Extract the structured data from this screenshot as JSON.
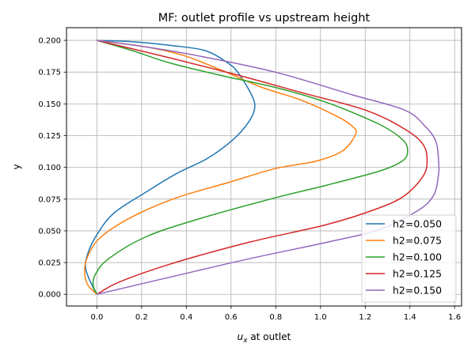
{
  "chart_data": {
    "type": "line",
    "title": "MF: outlet profile vs upstream height",
    "xlabel": "u_x at outlet",
    "xlabel_parts": {
      "base": "u",
      "sub": "x",
      "rest": " at outlet"
    },
    "ylabel": "y",
    "xlim": [
      -0.136,
      1.631
    ],
    "ylim": [
      -0.0092,
      0.21
    ],
    "xticks": [
      0.0,
      0.2,
      0.4,
      0.6,
      0.8,
      1.0,
      1.2,
      1.4,
      1.6
    ],
    "xtick_labels": [
      "0.0",
      "0.2",
      "0.4",
      "0.6",
      "0.8",
      "1.0",
      "1.2",
      "1.4",
      "1.6"
    ],
    "yticks": [
      0.0,
      0.025,
      0.05,
      0.075,
      0.1,
      0.125,
      0.15,
      0.175,
      0.2
    ],
    "ytick_labels": [
      "0.000",
      "0.025",
      "0.050",
      "0.075",
      "0.100",
      "0.125",
      "0.150",
      "0.175",
      "0.200"
    ],
    "grid": true,
    "legend_position": "lower-right",
    "series": [
      {
        "name": "h2=0.050",
        "color": "#1f77b4",
        "points": [
          [
            0,
            0
          ],
          [
            -0.017,
            0.0054
          ],
          [
            -0.05,
            0.02
          ],
          [
            -0.041,
            0.032
          ],
          [
            0,
            0.047
          ],
          [
            0.076,
            0.064
          ],
          [
            0.215,
            0.08
          ],
          [
            0.355,
            0.095
          ],
          [
            0.494,
            0.107
          ],
          [
            0.61,
            0.122
          ],
          [
            0.68,
            0.136
          ],
          [
            0.706,
            0.147
          ],
          [
            0.692,
            0.157
          ],
          [
            0.634,
            0.174
          ],
          [
            0.587,
            0.182
          ],
          [
            0.483,
            0.192
          ],
          [
            0.331,
            0.196
          ],
          [
            0.157,
            0.199
          ],
          [
            0,
            0.2
          ]
        ]
      },
      {
        "name": "h2=0.075",
        "color": "#ff7f0e",
        "points": [
          [
            0,
            0
          ],
          [
            -0.041,
            0.0075
          ],
          [
            -0.055,
            0.018
          ],
          [
            -0.041,
            0.03
          ],
          [
            0.017,
            0.045
          ],
          [
            0.157,
            0.061
          ],
          [
            0.355,
            0.076
          ],
          [
            0.587,
            0.088
          ],
          [
            0.797,
            0.099
          ],
          [
            0.983,
            0.105
          ],
          [
            1.099,
            0.113
          ],
          [
            1.157,
            0.126
          ],
          [
            1.145,
            0.132
          ],
          [
            1.076,
            0.14
          ],
          [
            0.913,
            0.153
          ],
          [
            0.738,
            0.163
          ],
          [
            0.564,
            0.176
          ],
          [
            0.39,
            0.188
          ],
          [
            0.215,
            0.195
          ],
          [
            0,
            0.2
          ]
        ]
      },
      {
        "name": "h2=0.100",
        "color": "#2ca02c",
        "points": [
          [
            0,
            0
          ],
          [
            -0.017,
            0.0075
          ],
          [
            -0.006,
            0.016
          ],
          [
            0.052,
            0.028
          ],
          [
            0.215,
            0.045
          ],
          [
            0.448,
            0.059
          ],
          [
            0.797,
            0.076
          ],
          [
            1.029,
            0.086
          ],
          [
            1.262,
            0.097
          ],
          [
            1.366,
            0.105
          ],
          [
            1.39,
            0.113
          ],
          [
            1.366,
            0.122
          ],
          [
            1.262,
            0.134
          ],
          [
            1.029,
            0.151
          ],
          [
            0.797,
            0.163
          ],
          [
            0.564,
            0.172
          ],
          [
            0.331,
            0.182
          ],
          [
            0.157,
            0.192
          ],
          [
            0,
            0.2
          ]
        ]
      },
      {
        "name": "h2=0.125",
        "color": "#d62728",
        "points": [
          [
            0,
            0
          ],
          [
            0.099,
            0.0096
          ],
          [
            0.331,
            0.024
          ],
          [
            0.68,
            0.041
          ],
          [
            1.029,
            0.055
          ],
          [
            1.262,
            0.068
          ],
          [
            1.378,
            0.078
          ],
          [
            1.459,
            0.093
          ],
          [
            1.477,
            0.105
          ],
          [
            1.459,
            0.118
          ],
          [
            1.378,
            0.13
          ],
          [
            1.203,
            0.145
          ],
          [
            0.913,
            0.159
          ],
          [
            0.622,
            0.173
          ],
          [
            0.331,
            0.186
          ],
          [
            0,
            0.2
          ]
        ]
      },
      {
        "name": "h2=0.150",
        "color": "#9467bd",
        "points": [
          [
            0,
            0
          ],
          [
            0.331,
            0.0137
          ],
          [
            0.68,
            0.028
          ],
          [
            1.029,
            0.041
          ],
          [
            1.262,
            0.051
          ],
          [
            1.436,
            0.066
          ],
          [
            1.506,
            0.078
          ],
          [
            1.527,
            0.093
          ],
          [
            1.529,
            0.103
          ],
          [
            1.517,
            0.12
          ],
          [
            1.47,
            0.132
          ],
          [
            1.378,
            0.145
          ],
          [
            1.145,
            0.157
          ],
          [
            0.797,
            0.175
          ],
          [
            0.448,
            0.188
          ],
          [
            0.215,
            0.195
          ],
          [
            0,
            0.2
          ]
        ]
      }
    ]
  }
}
